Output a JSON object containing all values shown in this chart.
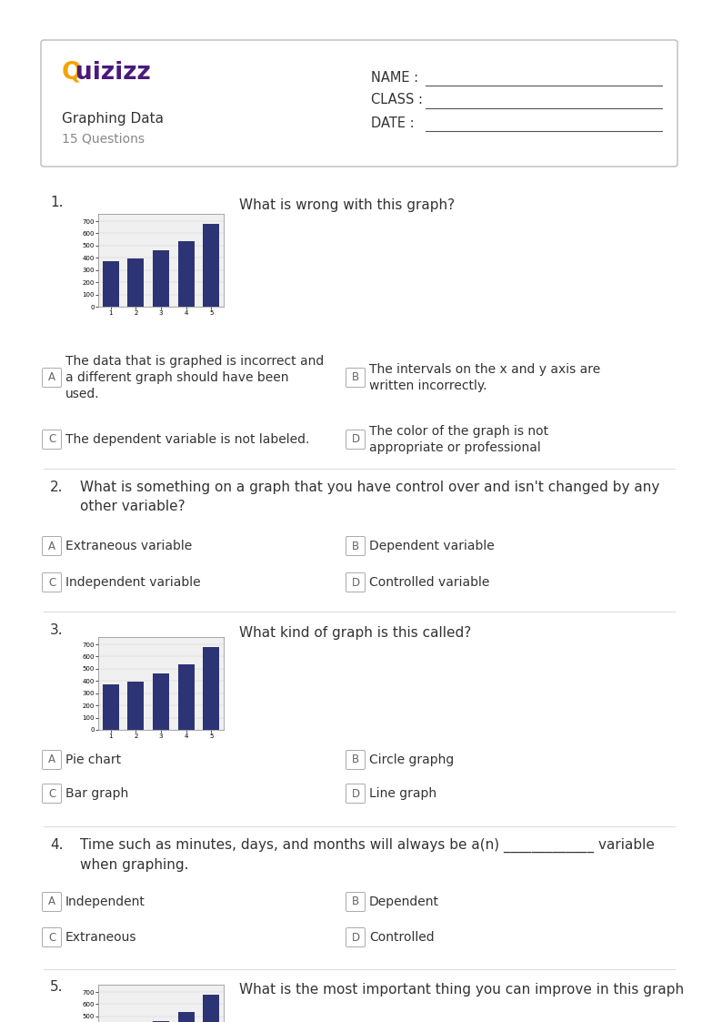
{
  "page_bg": "#ffffff",
  "logo_color_Q": "#f0a500",
  "logo_color_rest": "#4a1a7a",
  "bar_values": [
    370,
    395,
    460,
    535,
    680
  ],
  "bar_color": "#2d3475",
  "bar_yticks": [
    0,
    100,
    200,
    300,
    400,
    500,
    600,
    700
  ],
  "bar_xticks": [
    "1",
    "2",
    "3",
    "4",
    "5"
  ],
  "fields": [
    "NAME :",
    "CLASS :",
    "DATE :"
  ],
  "q1_text": "What is wrong with this graph?",
  "q1_answers": [
    [
      "A",
      "The data that is graphed is incorrect and\na different graph should have been\nused."
    ],
    [
      "B",
      "The intervals on the x and y axis are\nwritten incorrectly."
    ],
    [
      "C",
      "The dependent variable is not labeled."
    ],
    [
      "D",
      "The color of the graph is not\nappropriate or professional"
    ]
  ],
  "q2_text": "What is something on a graph that you have control over and isn't changed by any\nother variable?",
  "q2_answers": [
    [
      "A",
      "Extraneous variable"
    ],
    [
      "B",
      "Dependent variable"
    ],
    [
      "C",
      "Independent variable"
    ],
    [
      "D",
      "Controlled variable"
    ]
  ],
  "q3_text": "What kind of graph is this called?",
  "q3_answers": [
    [
      "A",
      "Pie chart"
    ],
    [
      "B",
      "Circle graphg"
    ],
    [
      "C",
      "Bar graph"
    ],
    [
      "D",
      "Line graph"
    ]
  ],
  "q4_text": "Time such as minutes, days, and months will always be a(n) _____________ variable\nwhen graphing.",
  "q4_answers": [
    [
      "A",
      "Independent"
    ],
    [
      "B",
      "Dependent"
    ],
    [
      "C",
      "Extraneous"
    ],
    [
      "D",
      "Controlled"
    ]
  ],
  "q5_text": "What is the most important thing you can improve in this graph"
}
